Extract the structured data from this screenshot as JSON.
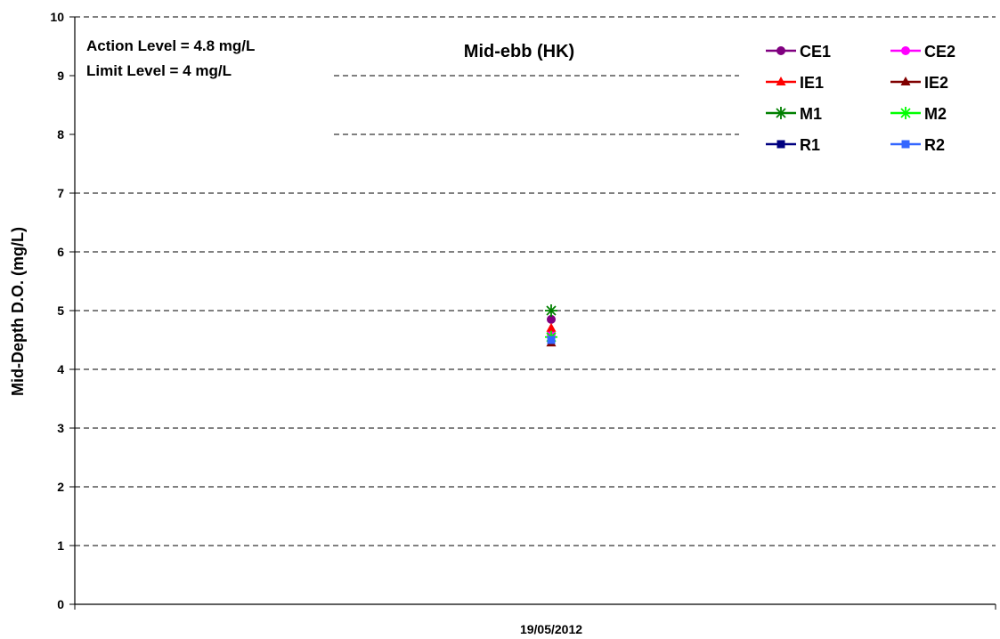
{
  "chart_data": {
    "type": "scatter",
    "title": "Mid-ebb (HK)",
    "xlabel": "",
    "ylabel": "Mid-Depth D.O. (mg/L)",
    "categories": [
      "19/05/2012"
    ],
    "ylim": [
      0,
      10
    ],
    "yticks": [
      "0",
      "1",
      "2",
      "3",
      "4",
      "5",
      "6",
      "7",
      "8",
      "9",
      "10"
    ],
    "grid": true,
    "legend_position": "top-right",
    "annotations": [
      "Action Level = 4.8 mg/L",
      "Limit Level = 4 mg/L"
    ],
    "series": [
      {
        "name": "CE1",
        "values": [
          4.85
        ],
        "color": "#800080",
        "marker": "circle"
      },
      {
        "name": "CE2",
        "values": [
          4.6
        ],
        "color": "#ff00ff",
        "marker": "circle"
      },
      {
        "name": "IE1",
        "values": [
          4.7
        ],
        "color": "#ff0000",
        "marker": "triangle"
      },
      {
        "name": "IE2",
        "values": [
          4.45
        ],
        "color": "#800000",
        "marker": "triangle"
      },
      {
        "name": "M1",
        "values": [
          5.0
        ],
        "color": "#008000",
        "marker": "star"
      },
      {
        "name": "M2",
        "values": [
          4.55
        ],
        "color": "#00ff00",
        "marker": "star"
      },
      {
        "name": "R1",
        "values": [
          4.5
        ],
        "color": "#000080",
        "marker": "square"
      },
      {
        "name": "R2",
        "values": [
          4.5
        ],
        "color": "#3366ff",
        "marker": "square"
      }
    ]
  }
}
